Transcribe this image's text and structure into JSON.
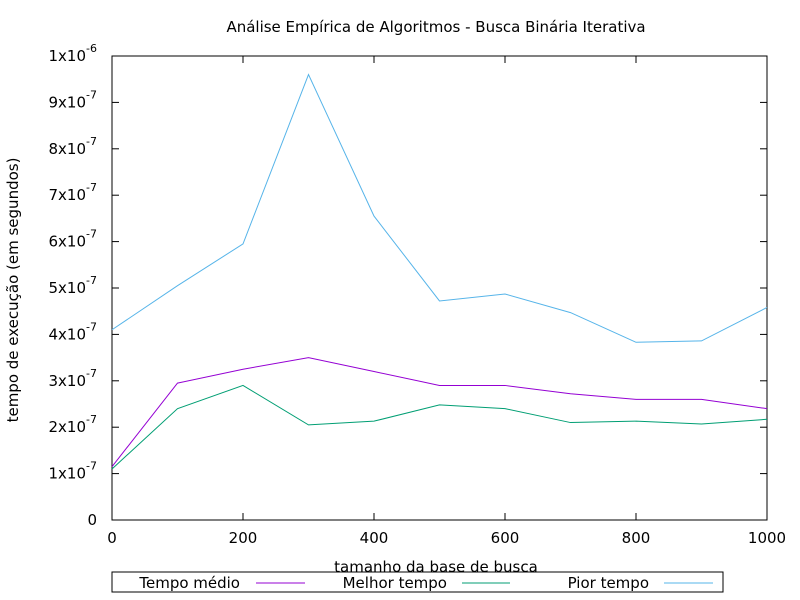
{
  "chart_data": {
    "type": "line",
    "title": "Análise Empírica de Algoritmos - Busca Binária Iterativa",
    "xlabel": "tamanho da base de busca",
    "ylabel": "tempo de execução (em segundos)",
    "xlim": [
      0,
      1000
    ],
    "ylim": [
      0,
      1e-06
    ],
    "x_ticks": [
      0,
      200,
      400,
      600,
      800,
      1000
    ],
    "x_tick_labels": [
      "0",
      "200",
      "400",
      "600",
      "800",
      "1000"
    ],
    "y_ticks": [
      0,
      1e-07,
      2e-07,
      3e-07,
      4e-07,
      5e-07,
      6e-07,
      7e-07,
      8e-07,
      9e-07,
      1e-06
    ],
    "y_tick_labels": [
      {
        "mant": "0",
        "exp": ""
      },
      {
        "mant": "1x10",
        "exp": "-7"
      },
      {
        "mant": "2x10",
        "exp": "-7"
      },
      {
        "mant": "3x10",
        "exp": "-7"
      },
      {
        "mant": "4x10",
        "exp": "-7"
      },
      {
        "mant": "5x10",
        "exp": "-7"
      },
      {
        "mant": "6x10",
        "exp": "-7"
      },
      {
        "mant": "7x10",
        "exp": "-7"
      },
      {
        "mant": "8x10",
        "exp": "-7"
      },
      {
        "mant": "9x10",
        "exp": "-7"
      },
      {
        "mant": "1x10",
        "exp": "-6"
      }
    ],
    "grid": false,
    "legend_position": "bottom",
    "x": [
      0,
      100,
      200,
      300,
      400,
      500,
      600,
      700,
      800,
      900,
      1000
    ],
    "series": [
      {
        "name": "Tempo médio",
        "color": "#9400d3",
        "values": [
          1.15e-07,
          2.95e-07,
          3.25e-07,
          3.5e-07,
          3.2e-07,
          2.9e-07,
          2.9e-07,
          2.72e-07,
          2.6e-07,
          2.6e-07,
          2.4e-07
        ]
      },
      {
        "name": "Melhor tempo",
        "color": "#009e73",
        "values": [
          1.1e-07,
          2.4e-07,
          2.9e-07,
          2.05e-07,
          2.13e-07,
          2.48e-07,
          2.4e-07,
          2.1e-07,
          2.13e-07,
          2.07e-07,
          2.17e-07
        ]
      },
      {
        "name": "Pior tempo",
        "color": "#56b4e9",
        "values": [
          4.1e-07,
          5.05e-07,
          5.95e-07,
          9.6e-07,
          6.55e-07,
          4.72e-07,
          4.87e-07,
          4.47e-07,
          3.83e-07,
          3.86e-07,
          4.58e-07
        ]
      }
    ]
  }
}
